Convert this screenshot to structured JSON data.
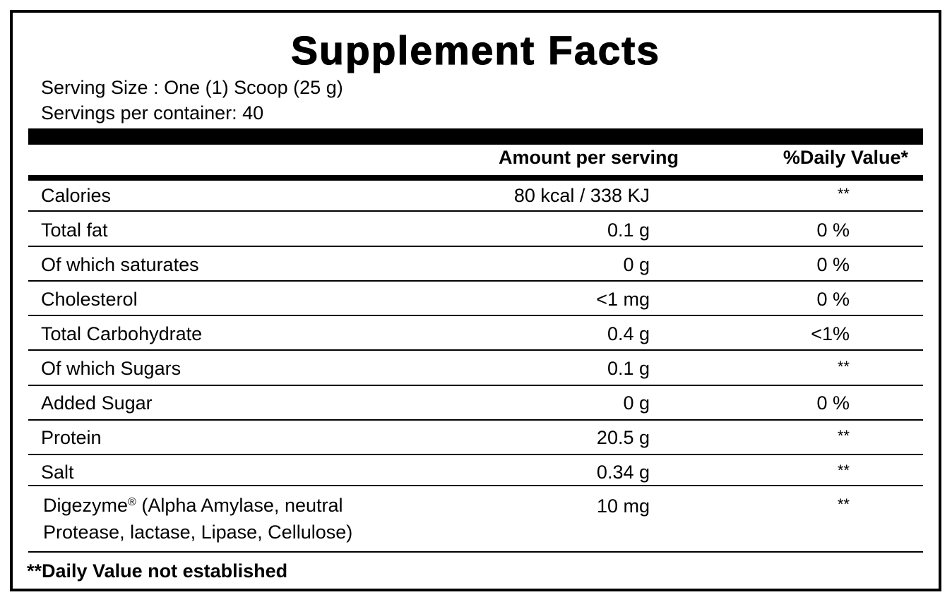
{
  "title": "Supplement Facts",
  "serving_size": "Serving Size : One (1) Scoop (25 g)",
  "servings_per_container": "Servings per container: 40",
  "columns": {
    "amount": "Amount per serving",
    "daily_value": "%Daily Value*"
  },
  "rows": [
    {
      "name": "Calories",
      "amount": "80 kcal / 338 KJ",
      "dv": "**"
    },
    {
      "name": "Total fat",
      "amount": "0.1 g",
      "dv": "0 %"
    },
    {
      "name": "Of which saturates",
      "amount": "0 g",
      "dv": "0 %"
    },
    {
      "name": "Cholesterol",
      "amount": "<1 mg",
      "dv": "0 %"
    },
    {
      "name": "Total Carbohydrate",
      "amount": "0.4 g",
      "dv": "<1%"
    },
    {
      "name": "Of which Sugars",
      "amount": "0.1 g",
      "dv": "**"
    },
    {
      "name": "Added Sugar",
      "amount": "0 g",
      "dv": "0 %"
    },
    {
      "name": "Protein",
      "amount": "20.5 g",
      "dv": "**"
    },
    {
      "name": "Salt",
      "amount": "0.34 g",
      "dv": "**"
    }
  ],
  "digezyme": {
    "name": "Digezyme",
    "mark": "®",
    "line1_rest": " (Alpha Amylase, neutral",
    "line2": "Protease, lactase, Lipase, Cellulose)",
    "amount": "10 mg",
    "dv": "**"
  },
  "footnote": "**Daily Value not established"
}
